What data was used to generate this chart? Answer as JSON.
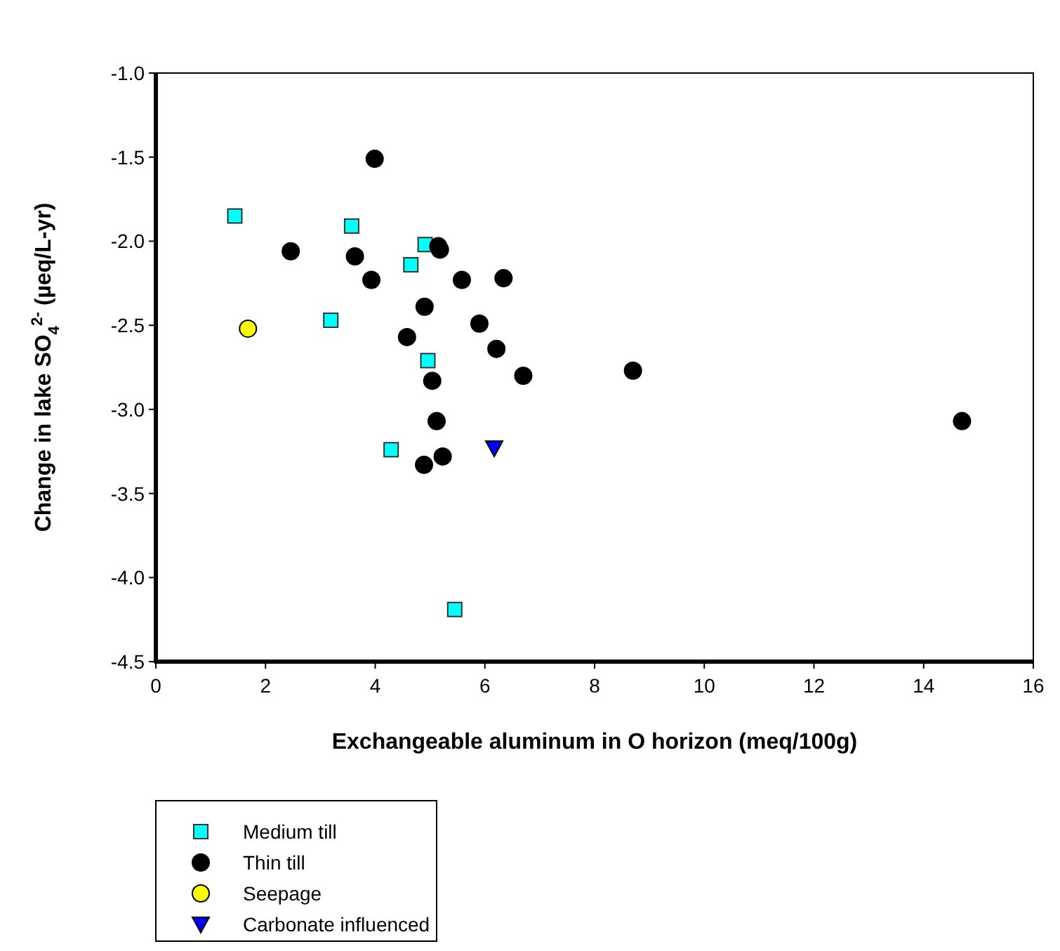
{
  "chart_data": {
    "type": "scatter",
    "xlabel": "Exchangeable aluminum in O horizon (meq/100g)",
    "ylabel": "Change in lake SO$_{4}$$^{2-}$ (µeq/L-yr)",
    "xlim": [
      0,
      16
    ],
    "xticks": [
      0,
      2,
      4,
      6,
      8,
      10,
      12,
      14,
      16
    ],
    "ylim": [
      -4.5,
      -1.0
    ],
    "yticks": [
      {
        "value": -4.5,
        "label": "-4.5"
      },
      {
        "value": -4,
        "label": "-4.0"
      },
      {
        "value": -3.5,
        "label": "-3.5"
      },
      {
        "value": -3,
        "label": "-3.0"
      },
      {
        "value": -2.5,
        "label": "-2.5"
      },
      {
        "value": -2,
        "label": "-2.0"
      },
      {
        "value": -1.5,
        "label": "-1.5"
      },
      {
        "value": -1,
        "label": "-1.0"
      }
    ],
    "grid": false,
    "legend": "bottom left",
    "series": [
      {
        "name": "Medium till",
        "color": "#00ffff",
        "marker": "square",
        "x": [
          1.44,
          3.57,
          4.91,
          4.65,
          3.19,
          4.96,
          4.29,
          5.45
        ],
        "values": [
          -1.85,
          -1.91,
          -2.02,
          -2.14,
          -2.47,
          -2.71,
          -3.24,
          -4.19
        ]
      },
      {
        "name": "Thin till",
        "color": "#000000",
        "marker": "circle",
        "x": [
          3.99,
          5.15,
          5.18,
          2.46,
          3.63,
          3.93,
          5.58,
          6.34,
          4.9,
          5.9,
          4.58,
          6.21,
          6.7,
          5.04,
          5.12,
          5.23,
          4.89,
          8.7,
          14.7
        ],
        "values": [
          -1.51,
          -2.03,
          -2.05,
          -2.06,
          -2.09,
          -2.23,
          -2.23,
          -2.22,
          -2.39,
          -2.49,
          -2.57,
          -2.64,
          -2.8,
          -2.83,
          -3.07,
          -3.28,
          -3.33,
          -2.77,
          -3.07
        ]
      },
      {
        "name": "Seepage",
        "color": "#ffff00",
        "marker": "circle",
        "x": [
          1.68
        ],
        "values": [
          -2.52
        ]
      },
      {
        "name": "Carbonate influenced",
        "color": "#0000ff",
        "marker": "triangle",
        "x": [
          6.17
        ],
        "values": [
          -3.23
        ]
      }
    ]
  }
}
